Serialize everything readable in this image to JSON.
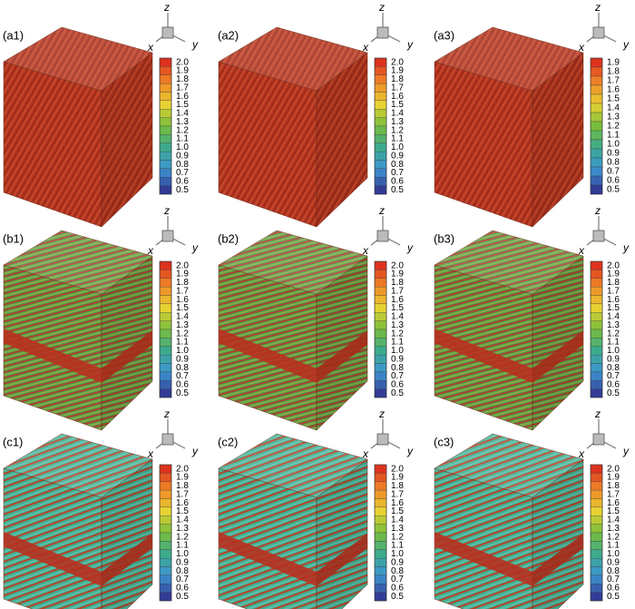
{
  "panels": [
    {
      "label": "(a1)",
      "axes": {
        "x": "x",
        "y": "y",
        "z": "z"
      },
      "colorbar": [
        "2.0",
        "1.9",
        "1.8",
        "1.7",
        "1.6",
        "1.5",
        "1.4",
        "1.3",
        "1.2",
        "1.1",
        "1.0",
        "0.9",
        "0.8",
        "0.7",
        "0.6",
        "0.5"
      ]
    },
    {
      "label": "(a2)",
      "axes": {
        "x": "x",
        "y": "y",
        "z": "z"
      },
      "colorbar": [
        "2.0",
        "1.9",
        "1.8",
        "1.7",
        "1.6",
        "1.5",
        "1.4",
        "1.3",
        "1.2",
        "1.1",
        "1.0",
        "0.9",
        "0.8",
        "0.7",
        "0.6",
        "0.5"
      ]
    },
    {
      "label": "(a3)",
      "axes": {
        "x": "x",
        "y": "y",
        "z": "z"
      },
      "colorbar": [
        "1.9",
        "1.8",
        "1.7",
        "1.6",
        "1.5",
        "1.4",
        "1.3",
        "1.2",
        "1.1",
        "1.0",
        "0.9",
        "0.8",
        "0.7",
        "0.6",
        "0.5"
      ]
    },
    {
      "label": "(b1)",
      "axes": {
        "x": "x",
        "y": "y",
        "z": "z"
      },
      "colorbar": [
        "2.0",
        "1.9",
        "1.8",
        "1.7",
        "1.6",
        "1.5",
        "1.4",
        "1.3",
        "1.2",
        "1.1",
        "1.0",
        "0.9",
        "0.8",
        "0.7",
        "0.6",
        "0.5"
      ]
    },
    {
      "label": "(b2)",
      "axes": {
        "x": "x",
        "y": "y",
        "z": "z"
      },
      "colorbar": [
        "2.0",
        "1.9",
        "1.8",
        "1.7",
        "1.6",
        "1.5",
        "1.4",
        "1.3",
        "1.2",
        "1.1",
        "1.0",
        "0.9",
        "0.8",
        "0.7",
        "0.6",
        "0.5"
      ]
    },
    {
      "label": "(b3)",
      "axes": {
        "x": "x",
        "y": "y",
        "z": "z"
      },
      "colorbar": [
        "2.0",
        "1.9",
        "1.8",
        "1.7",
        "1.6",
        "1.5",
        "1.4",
        "1.3",
        "1.2",
        "1.1",
        "1.0",
        "0.9",
        "0.8",
        "0.7",
        "0.6",
        "0.5"
      ]
    },
    {
      "label": "(c1)",
      "axes": {
        "x": "x",
        "y": "y",
        "z": "z"
      },
      "colorbar": [
        "2.0",
        "1.9",
        "1.8",
        "1.7",
        "1.6",
        "1.5",
        "1.4",
        "1.3",
        "1.2",
        "1.1",
        "1.0",
        "0.9",
        "0.8",
        "0.7",
        "0.6",
        "0.5"
      ]
    },
    {
      "label": "(c2)",
      "axes": {
        "x": "x",
        "y": "y",
        "z": "z"
      },
      "colorbar": [
        "2.0",
        "1.9",
        "1.8",
        "1.7",
        "1.6",
        "1.5",
        "1.4",
        "1.3",
        "1.2",
        "1.1",
        "1.0",
        "0.9",
        "0.8",
        "0.7",
        "0.6",
        "0.5"
      ]
    },
    {
      "label": "(c3)",
      "axes": {
        "x": "x",
        "y": "y",
        "z": "z"
      },
      "colorbar": [
        "2.0",
        "1.9",
        "1.8",
        "1.7",
        "1.6",
        "1.5",
        "1.4",
        "1.3",
        "1.2",
        "1.1",
        "1.0",
        "0.9",
        "0.8",
        "0.7",
        "0.6",
        "0.5"
      ]
    }
  ]
}
